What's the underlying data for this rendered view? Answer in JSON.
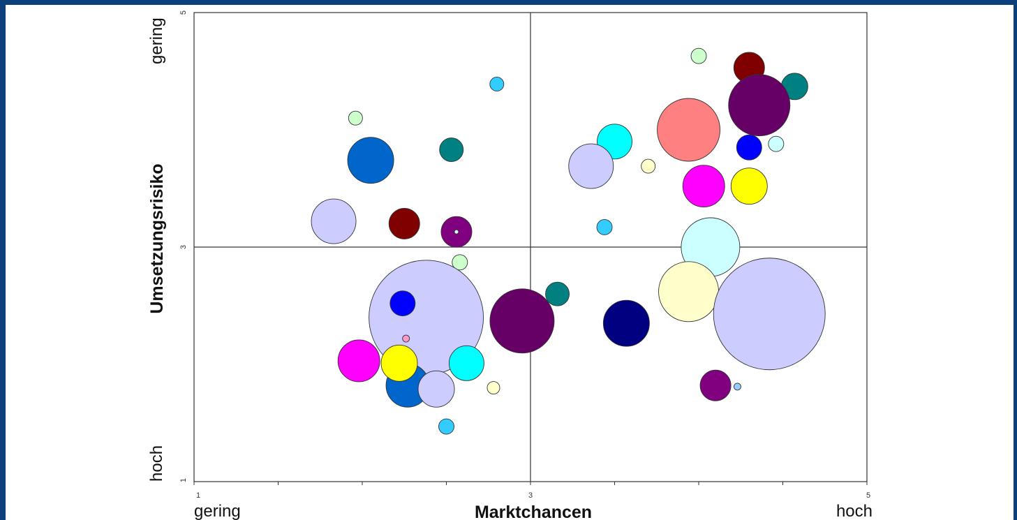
{
  "chart_data": {
    "type": "scatter",
    "subtype": "bubble",
    "title": "",
    "xlabel": "Marktchancen",
    "ylabel": "Umsetzungsrisiko",
    "xlim": [
      1,
      5
    ],
    "ylim": [
      1,
      5
    ],
    "quadrant_lines": {
      "x": 3,
      "y": 3
    },
    "x_ticks": [
      "1",
      "3",
      "5"
    ],
    "y_ticks": [
      "1",
      "3",
      "5"
    ],
    "x_end_labels": {
      "low": "gering",
      "high": "hoch"
    },
    "y_end_labels": {
      "low": "hoch",
      "high": "gering"
    },
    "grid": false,
    "legend": "none",
    "points": [
      {
        "x": 2.8,
        "y": 4.39,
        "size": 10,
        "color": "#33ccff"
      },
      {
        "x": 1.96,
        "y": 4.1,
        "size": 10,
        "color": "#ccffcc"
      },
      {
        "x": 2.53,
        "y": 3.83,
        "size": 17,
        "color": "#008080"
      },
      {
        "x": 2.05,
        "y": 3.74,
        "size": 33,
        "color": "#0066cc"
      },
      {
        "x": 1.83,
        "y": 3.22,
        "size": 32,
        "color": "#ccccff"
      },
      {
        "x": 2.25,
        "y": 3.2,
        "size": 22,
        "color": "#800000"
      },
      {
        "x": 2.56,
        "y": 3.13,
        "size": 22,
        "color": "#800080"
      },
      {
        "x": 2.56,
        "y": 3.13,
        "size": 3,
        "color": "#ccffff"
      },
      {
        "x": 2.58,
        "y": 2.87,
        "size": 11,
        "color": "#ccffcc"
      },
      {
        "x": 3.16,
        "y": 2.6,
        "size": 17,
        "color": "#008080"
      },
      {
        "x": 2.38,
        "y": 2.4,
        "size": 82,
        "color": "#ccccff"
      },
      {
        "x": 2.95,
        "y": 2.37,
        "size": 46,
        "color": "#660066"
      },
      {
        "x": 2.24,
        "y": 2.52,
        "size": 18,
        "color": "#0000ff"
      },
      {
        "x": 2.26,
        "y": 2.22,
        "size": 5,
        "color": "#ff99cc"
      },
      {
        "x": 1.98,
        "y": 2.03,
        "size": 30,
        "color": "#ff00ff"
      },
      {
        "x": 2.27,
        "y": 1.82,
        "size": 31,
        "color": "#0066cc"
      },
      {
        "x": 2.22,
        "y": 2.01,
        "size": 26,
        "color": "#ffff00"
      },
      {
        "x": 2.62,
        "y": 2.01,
        "size": 25,
        "color": "#00ffff"
      },
      {
        "x": 2.44,
        "y": 1.79,
        "size": 26,
        "color": "#ccccff"
      },
      {
        "x": 2.78,
        "y": 1.8,
        "size": 9,
        "color": "#ffffcc"
      },
      {
        "x": 2.5,
        "y": 1.47,
        "size": 11,
        "color": "#33ccff"
      },
      {
        "x": 4.0,
        "y": 4.63,
        "size": 11,
        "color": "#ccffcc"
      },
      {
        "x": 4.3,
        "y": 4.53,
        "size": 22,
        "color": "#800000"
      },
      {
        "x": 4.57,
        "y": 4.37,
        "size": 19,
        "color": "#008080"
      },
      {
        "x": 4.36,
        "y": 4.21,
        "size": 44,
        "color": "#660066"
      },
      {
        "x": 3.94,
        "y": 4.0,
        "size": 45,
        "color": "#ff8080"
      },
      {
        "x": 3.5,
        "y": 3.9,
        "size": 25,
        "color": "#00ffff"
      },
      {
        "x": 4.3,
        "y": 3.85,
        "size": 18,
        "color": "#0000ff"
      },
      {
        "x": 4.46,
        "y": 3.88,
        "size": 11,
        "color": "#ccffff"
      },
      {
        "x": 3.36,
        "y": 3.69,
        "size": 32,
        "color": "#ccccff"
      },
      {
        "x": 3.7,
        "y": 3.69,
        "size": 10,
        "color": "#ffffcc"
      },
      {
        "x": 4.03,
        "y": 3.52,
        "size": 30,
        "color": "#ff00ff"
      },
      {
        "x": 4.3,
        "y": 3.52,
        "size": 26,
        "color": "#ffff00"
      },
      {
        "x": 3.44,
        "y": 3.17,
        "size": 11,
        "color": "#33ccff"
      },
      {
        "x": 4.07,
        "y": 3.0,
        "size": 42,
        "color": "#ccffff"
      },
      {
        "x": 3.94,
        "y": 2.62,
        "size": 43,
        "color": "#ffffcc"
      },
      {
        "x": 4.42,
        "y": 2.43,
        "size": 80,
        "color": "#ccccff"
      },
      {
        "x": 3.57,
        "y": 2.35,
        "size": 33,
        "color": "#000080"
      },
      {
        "x": 4.1,
        "y": 1.82,
        "size": 22,
        "color": "#800080"
      },
      {
        "x": 4.23,
        "y": 1.81,
        "size": 5,
        "color": "#99ccff"
      }
    ]
  }
}
